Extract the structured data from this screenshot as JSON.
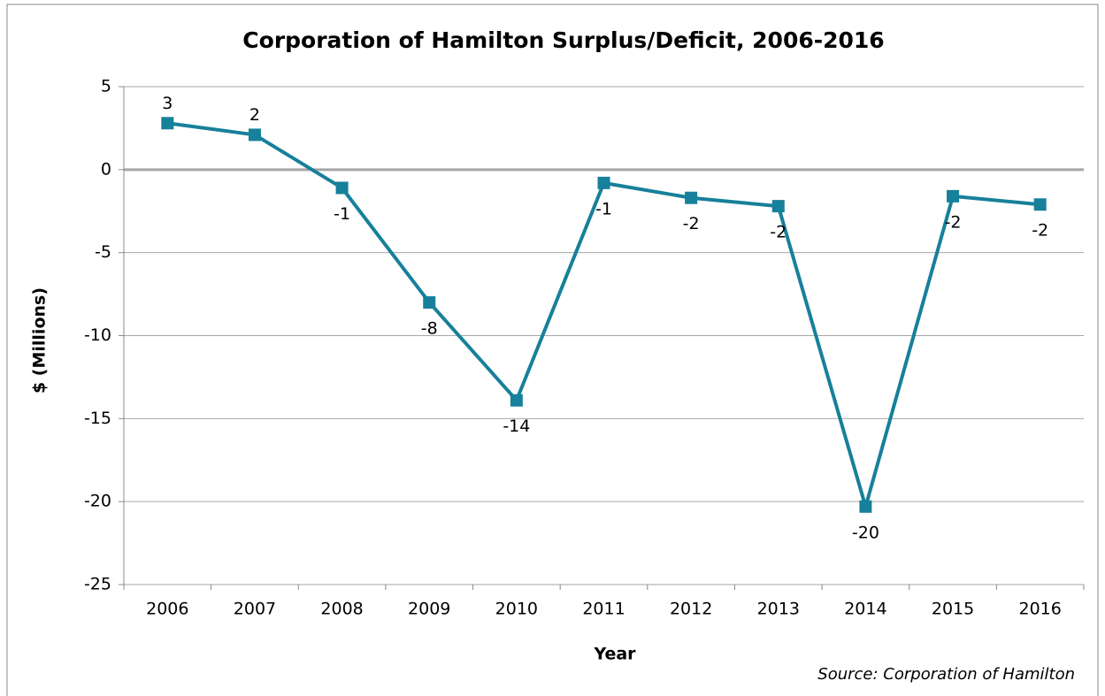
{
  "chart_data": {
    "type": "line",
    "title": "Corporation of Hamilton Surplus/Deficit, 2006-2016",
    "x_label": "Year",
    "y_label": "$ (Millions)",
    "source": "Source: Corporation of Hamilton",
    "categories": [
      "2006",
      "2007",
      "2008",
      "2009",
      "2010",
      "2011",
      "2012",
      "2013",
      "2014",
      "2015",
      "2016"
    ],
    "series": [
      {
        "name": "Surplus/Deficit",
        "color": "#17809a",
        "values": [
          2.8,
          2.1,
          -1.1,
          -8.0,
          -13.9,
          -0.8,
          -1.7,
          -2.2,
          -20.3,
          -1.6,
          -2.1
        ],
        "value_labels": [
          "3",
          "2",
          "-1",
          "-8",
          "-14",
          "-1",
          "-2",
          "-2",
          "-20",
          "-2",
          "-2"
        ]
      }
    ],
    "ylim": [
      -25,
      5
    ],
    "yticks": [
      -25,
      -20,
      -15,
      -10,
      -5,
      0,
      5
    ],
    "grid": true
  }
}
